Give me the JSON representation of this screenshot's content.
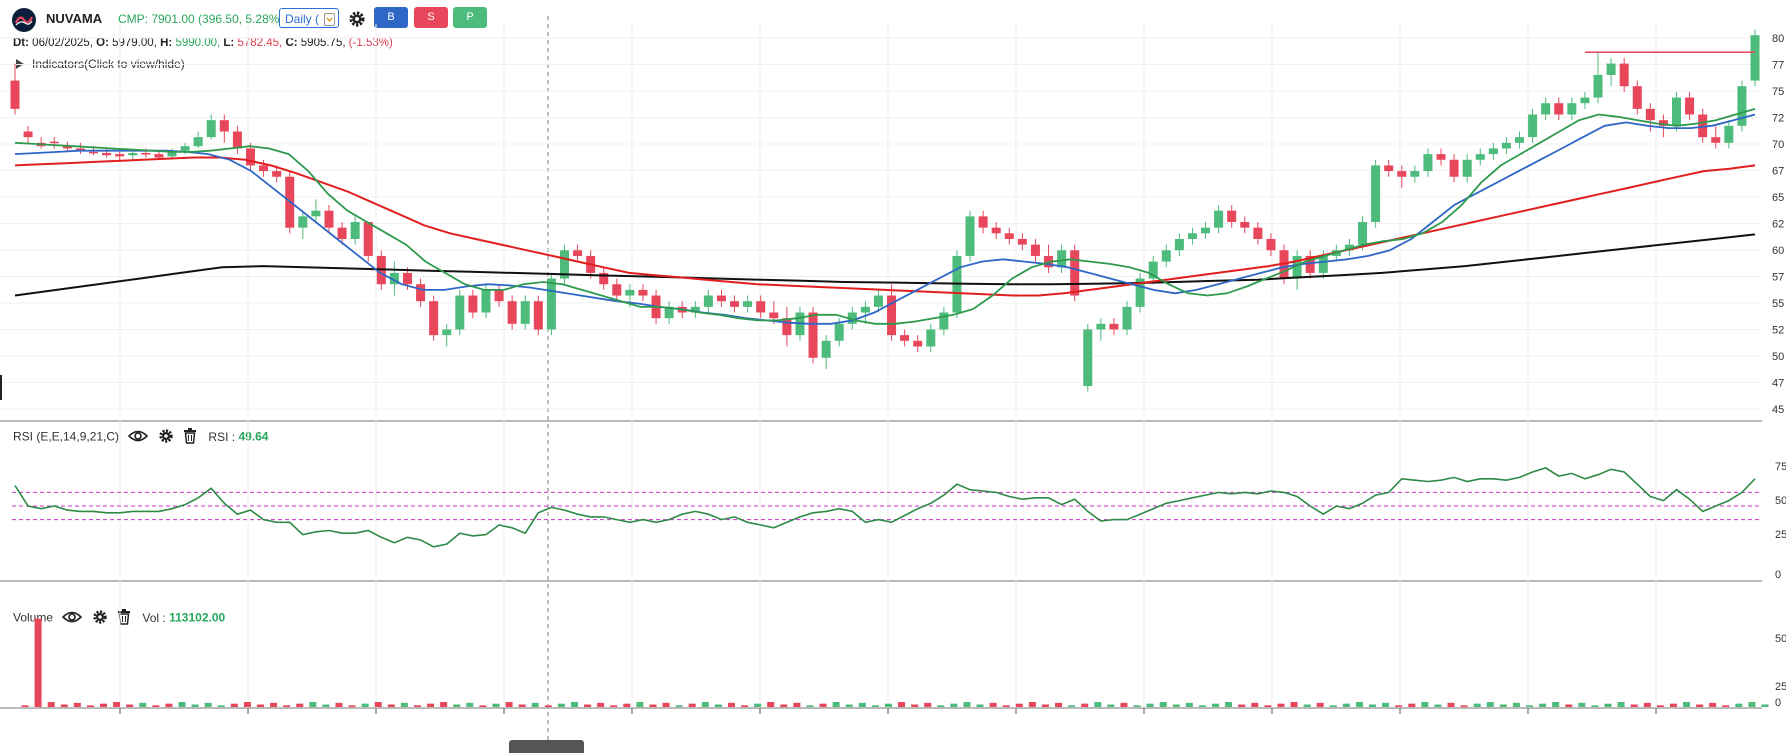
{
  "header": {
    "symbol": "NUVAMA",
    "cmp": "CMP: 7901.00 (396.50, 5.28%)",
    "interval": "Daily (",
    "buttons": {
      "buy": "B",
      "sell": "S",
      "p": "P"
    }
  },
  "ohlc": {
    "dt_label": "Dt:",
    "dt": "06/02/2025,",
    "o_label": "O:",
    "o": "5979.00,",
    "h_label": "H:",
    "h": "5990.00,",
    "l_label": "L:",
    "l": "5782.45,",
    "c_label": "C:",
    "c": "5905.75,",
    "chg": "(-1.53%)"
  },
  "indicators_toggle": "Indicators(Click to view/hide)",
  "rsi_panel": {
    "name": "RSI (E,E,14,9,21,C)",
    "value_label": "RSI :",
    "value": "49.64"
  },
  "volume_panel": {
    "name": "Volume",
    "value_label": "Vol :",
    "value": "113102.00"
  },
  "price_axis": [
    "80",
    "77",
    "75",
    "72",
    "70",
    "67",
    "65",
    "62",
    "60",
    "57",
    "55",
    "52",
    "50",
    "47",
    "45"
  ],
  "rsi_axis": [
    "75",
    "50",
    "25",
    "0"
  ],
  "volume_axis": [
    "50",
    "25",
    "0"
  ],
  "colors": {
    "up": "#4dbb7b",
    "down": "#e8465b",
    "ema_short": "#2e9a4e",
    "ema_mid": "#2e67c6",
    "ema_long": "#e31e1e",
    "sma_200": "#111111",
    "rsi_line": "#2e8a46",
    "rsi_band": "#cc33cc"
  },
  "chart_data": [
    {
      "type": "candlestick",
      "panel": "price",
      "candles": [
        [
          7500,
          7650,
          7200,
          7250
        ],
        [
          7050,
          7100,
          6950,
          7000
        ],
        [
          6950,
          7000,
          6900,
          6920
        ],
        [
          6960,
          7000,
          6900,
          6950
        ],
        [
          6920,
          6960,
          6880,
          6900
        ],
        [
          6900,
          6950,
          6850,
          6880
        ],
        [
          6870,
          6920,
          6840,
          6860
        ],
        [
          6860,
          6900,
          6820,
          6840
        ],
        [
          6850,
          6880,
          6800,
          6830
        ],
        [
          6840,
          6880,
          6800,
          6860
        ],
        [
          6860,
          6900,
          6820,
          6850
        ],
        [
          6850,
          6880,
          6800,
          6820
        ],
        [
          6830,
          6900,
          6800,
          6880
        ],
        [
          6880,
          6950,
          6850,
          6920
        ],
        [
          6920,
          7050,
          6900,
          7000
        ],
        [
          7000,
          7200,
          6980,
          7150
        ],
        [
          7150,
          7200,
          6950,
          7050
        ],
        [
          7050,
          7100,
          6850,
          6900
        ],
        [
          6900,
          6950,
          6700,
          6750
        ],
        [
          6750,
          6800,
          6650,
          6700
        ],
        [
          6700,
          6750,
          6600,
          6650
        ],
        [
          6650,
          6700,
          6150,
          6200
        ],
        [
          6200,
          6350,
          6100,
          6300
        ],
        [
          6300,
          6450,
          6250,
          6350
        ],
        [
          6350,
          6400,
          6150,
          6200
        ],
        [
          6200,
          6250,
          6050,
          6100
        ],
        [
          6100,
          6300,
          6050,
          6250
        ],
        [
          6250,
          6250,
          5900,
          5950
        ],
        [
          5950,
          6000,
          5650,
          5700
        ],
        [
          5700,
          5900,
          5600,
          5800
        ],
        [
          5800,
          5850,
          5650,
          5700
        ],
        [
          5700,
          5750,
          5500,
          5550
        ],
        [
          5550,
          5600,
          5200,
          5250
        ],
        [
          5250,
          5350,
          5150,
          5300
        ],
        [
          5300,
          5650,
          5250,
          5600
        ],
        [
          5600,
          5650,
          5400,
          5450
        ],
        [
          5450,
          5700,
          5400,
          5650
        ],
        [
          5650,
          5700,
          5500,
          5550
        ],
        [
          5550,
          5600,
          5300,
          5350
        ],
        [
          5350,
          5600,
          5300,
          5550
        ],
        [
          5550,
          5600,
          5250,
          5300
        ],
        [
          5300,
          5800,
          5250,
          5750
        ],
        [
          5750,
          6050,
          5700,
          6000
        ],
        [
          6000,
          6050,
          5900,
          5950
        ],
        [
          5950,
          6000,
          5750,
          5800
        ],
        [
          5800,
          5850,
          5650,
          5700
        ],
        [
          5700,
          5750,
          5550,
          5600
        ],
        [
          5600,
          5700,
          5500,
          5650
        ],
        [
          5650,
          5700,
          5550,
          5600
        ],
        [
          5600,
          5650,
          5350,
          5400
        ],
        [
          5400,
          5550,
          5350,
          5500
        ],
        [
          5500,
          5550,
          5400,
          5450
        ],
        [
          5450,
          5550,
          5400,
          5500
        ],
        [
          5500,
          5650,
          5450,
          5600
        ],
        [
          5600,
          5650,
          5500,
          5550
        ],
        [
          5550,
          5600,
          5450,
          5500
        ],
        [
          5500,
          5600,
          5450,
          5550
        ],
        [
          5550,
          5600,
          5400,
          5450
        ],
        [
          5450,
          5550,
          5350,
          5400
        ],
        [
          5400,
          5500,
          5150,
          5250
        ],
        [
          5250,
          5500,
          5200,
          5450
        ],
        [
          5450,
          5500,
          5000,
          5050
        ],
        [
          5050,
          5250,
          4950,
          5200
        ],
        [
          5200,
          5400,
          5150,
          5350
        ],
        [
          5350,
          5500,
          5300,
          5450
        ],
        [
          5450,
          5550,
          5350,
          5500
        ],
        [
          5500,
          5650,
          5450,
          5600
        ],
        [
          5600,
          5700,
          5200,
          5250
        ],
        [
          5250,
          5300,
          5150,
          5200
        ],
        [
          5200,
          5250,
          5100,
          5150
        ],
        [
          5150,
          5350,
          5100,
          5300
        ],
        [
          5300,
          5500,
          5250,
          5450
        ],
        [
          5450,
          6000,
          5400,
          5950
        ],
        [
          5950,
          6350,
          5900,
          6300
        ],
        [
          6300,
          6350,
          6150,
          6200
        ],
        [
          6200,
          6250,
          6100,
          6150
        ],
        [
          6150,
          6200,
          6050,
          6100
        ],
        [
          6100,
          6150,
          6000,
          6050
        ],
        [
          6050,
          6100,
          5900,
          5950
        ],
        [
          5950,
          6050,
          5800,
          5850
        ],
        [
          5850,
          6050,
          5800,
          6000
        ],
        [
          6000,
          6050,
          5550,
          5600
        ],
        [
          4800,
          5350,
          4750,
          5300
        ],
        [
          5300,
          5400,
          5200,
          5350
        ],
        [
          5350,
          5400,
          5250,
          5300
        ],
        [
          5300,
          5550,
          5250,
          5500
        ],
        [
          5500,
          5800,
          5450,
          5750
        ],
        [
          5750,
          5950,
          5700,
          5900
        ],
        [
          5900,
          6050,
          5850,
          6000
        ],
        [
          6000,
          6150,
          5950,
          6100
        ],
        [
          6100,
          6200,
          6050,
          6150
        ],
        [
          6150,
          6250,
          6100,
          6200
        ],
        [
          6200,
          6400,
          6150,
          6350
        ],
        [
          6350,
          6400,
          6200,
          6250
        ],
        [
          6250,
          6300,
          6150,
          6200
        ],
        [
          6200,
          6250,
          6050,
          6100
        ],
        [
          6100,
          6150,
          5950,
          6000
        ],
        [
          6000,
          6050,
          5700,
          5750
        ],
        [
          5750,
          6000,
          5650,
          5950
        ],
        [
          5950,
          6000,
          5750,
          5800
        ],
        [
          5800,
          6000,
          5750,
          5950
        ],
        [
          5950,
          6050,
          5900,
          6000
        ],
        [
          6000,
          6100,
          5950,
          6050
        ],
        [
          6050,
          6300,
          6000,
          6250
        ],
        [
          6250,
          6800,
          6200,
          6750
        ],
        [
          6750,
          6800,
          6650,
          6700
        ],
        [
          6700,
          6750,
          6550,
          6650
        ],
        [
          6650,
          6750,
          6600,
          6700
        ],
        [
          6700,
          6900,
          6650,
          6850
        ],
        [
          6850,
          6900,
          6750,
          6800
        ],
        [
          6800,
          6850,
          6600,
          6650
        ],
        [
          6650,
          6850,
          6600,
          6800
        ],
        [
          6800,
          6900,
          6750,
          6850
        ],
        [
          6850,
          6950,
          6800,
          6900
        ],
        [
          6900,
          7000,
          6850,
          6950
        ],
        [
          6950,
          7050,
          6900,
          7000
        ],
        [
          7000,
          7250,
          6950,
          7200
        ],
        [
          7200,
          7350,
          7150,
          7300
        ],
        [
          7300,
          7350,
          7150,
          7200
        ],
        [
          7200,
          7350,
          7150,
          7300
        ],
        [
          7300,
          7400,
          7250,
          7350
        ],
        [
          7350,
          7750,
          7300,
          7550
        ],
        [
          7550,
          7700,
          7450,
          7650
        ],
        [
          7650,
          7700,
          7400,
          7450
        ],
        [
          7450,
          7500,
          7200,
          7250
        ],
        [
          7250,
          7300,
          7050,
          7150
        ],
        [
          7150,
          7200,
          7000,
          7100
        ],
        [
          7100,
          7400,
          7050,
          7350
        ],
        [
          7350,
          7400,
          7150,
          7200
        ],
        [
          7200,
          7250,
          6950,
          7000
        ],
        [
          7000,
          7100,
          6900,
          6950
        ],
        [
          6950,
          7150,
          6900,
          7100
        ],
        [
          7100,
          7500,
          7050,
          7450
        ],
        [
          7500,
          7950,
          7450,
          7901
        ]
      ],
      "ema_short": [
        6950,
        6940,
        6930,
        6920,
        6910,
        6900,
        6890,
        6880,
        6870,
        6870,
        6880,
        6900,
        6920,
        6900,
        6850,
        6700,
        6500,
        6350,
        6250,
        6150,
        6050,
        5900,
        5800,
        5700,
        5650,
        5650,
        5700,
        5720,
        5700,
        5650,
        5600,
        5550,
        5500,
        5500,
        5480,
        5450,
        5430,
        5400,
        5380,
        5380,
        5400,
        5430,
        5430,
        5380,
        5350,
        5350,
        5370,
        5400,
        5430,
        5480,
        5600,
        5750,
        5850,
        5900,
        5920,
        5900,
        5880,
        5850,
        5800,
        5700,
        5620,
        5600,
        5620,
        5680,
        5750,
        5820,
        5900,
        5950,
        6000,
        6050,
        6080,
        6100,
        6150,
        6250,
        6400,
        6600,
        6750,
        6850,
        6950,
        7050,
        7150,
        7200,
        7180,
        7150,
        7120,
        7100,
        7120,
        7150,
        7200,
        7250
      ],
      "ema_mid": [
        6850,
        6860,
        6870,
        6880,
        6880,
        6880,
        6880,
        6880,
        6870,
        6850,
        6800,
        6700,
        6550,
        6400,
        6250,
        6100,
        5950,
        5800,
        5700,
        5650,
        5650,
        5680,
        5700,
        5690,
        5670,
        5640,
        5610,
        5580,
        5550,
        5530,
        5500,
        5480,
        5450,
        5430,
        5400,
        5380,
        5360,
        5350,
        5350,
        5380,
        5450,
        5550,
        5650,
        5750,
        5850,
        5900,
        5920,
        5900,
        5880,
        5850,
        5800,
        5750,
        5700,
        5650,
        5620,
        5650,
        5700,
        5750,
        5800,
        5850,
        5880,
        5900,
        5920,
        5950,
        6000,
        6100,
        6250,
        6400,
        6500,
        6600,
        6700,
        6800,
        6900,
        7000,
        7100,
        7130,
        7100,
        7080,
        7080,
        7100,
        7150,
        7200
      ],
      "ema_long": [
        6750,
        6760,
        6770,
        6780,
        6790,
        6800,
        6810,
        6820,
        6820,
        6800,
        6750,
        6680,
        6600,
        6520,
        6420,
        6320,
        6220,
        6150,
        6100,
        6050,
        6000,
        5950,
        5900,
        5850,
        5800,
        5780,
        5760,
        5740,
        5720,
        5700,
        5690,
        5680,
        5670,
        5660,
        5650,
        5640,
        5630,
        5620,
        5610,
        5600,
        5600,
        5620,
        5650,
        5680,
        5710,
        5740,
        5770,
        5800,
        5830,
        5860,
        5900,
        5950,
        6000,
        6050,
        6100,
        6150,
        6200,
        6250,
        6300,
        6350,
        6400,
        6450,
        6500,
        6550,
        6600,
        6650,
        6700,
        6720,
        6750
      ],
      "sma_200": [
        5600,
        5650,
        5700,
        5750,
        5800,
        5850,
        5860,
        5850,
        5840,
        5830,
        5820,
        5810,
        5800,
        5790,
        5780,
        5770,
        5760,
        5750,
        5740,
        5730,
        5720,
        5715,
        5710,
        5705,
        5700,
        5700,
        5705,
        5710,
        5720,
        5730,
        5740,
        5760,
        5780,
        5800,
        5830,
        5860,
        5900,
        5940,
        5980,
        6020,
        6060,
        6100,
        6140
      ],
      "resistance": 7750,
      "ylim": [
        4500,
        8000
      ]
    },
    {
      "type": "line",
      "panel": "rsi",
      "values": [
        65,
        50,
        48,
        50,
        47,
        46,
        46,
        45,
        45,
        46,
        46,
        46,
        48,
        51,
        56,
        63,
        52,
        44,
        47,
        40,
        38,
        38,
        29,
        31,
        32,
        30,
        30,
        32,
        27,
        23,
        27,
        25,
        20,
        22,
        30,
        28,
        29,
        36,
        34,
        30,
        45,
        49,
        47,
        44,
        42,
        42,
        40,
        38,
        40,
        38,
        40,
        44,
        46,
        44,
        40,
        42,
        38,
        36,
        34,
        38,
        42,
        45,
        46,
        48,
        46,
        38,
        40,
        38,
        43,
        48,
        52,
        58,
        66,
        62,
        61,
        60,
        57,
        55,
        56,
        56,
        51,
        55,
        46,
        39,
        40,
        40,
        44,
        48,
        52,
        54,
        56,
        58,
        60,
        59,
        60,
        59,
        61,
        60,
        57,
        50,
        44,
        50,
        48,
        52,
        58,
        60,
        70,
        69,
        68,
        69,
        71,
        68,
        70,
        70,
        69,
        71,
        75,
        78,
        72,
        74,
        70,
        73,
        77,
        75,
        66,
        57,
        54,
        62,
        55,
        46,
        50,
        54,
        60,
        70
      ],
      "bands": [
        40,
        50,
        60
      ],
      "ylim": [
        0,
        100
      ]
    },
    {
      "type": "bar",
      "panel": "volume",
      "spike": {
        "index": 1,
        "value": 53
      },
      "ylim": [
        0,
        60
      ]
    }
  ]
}
